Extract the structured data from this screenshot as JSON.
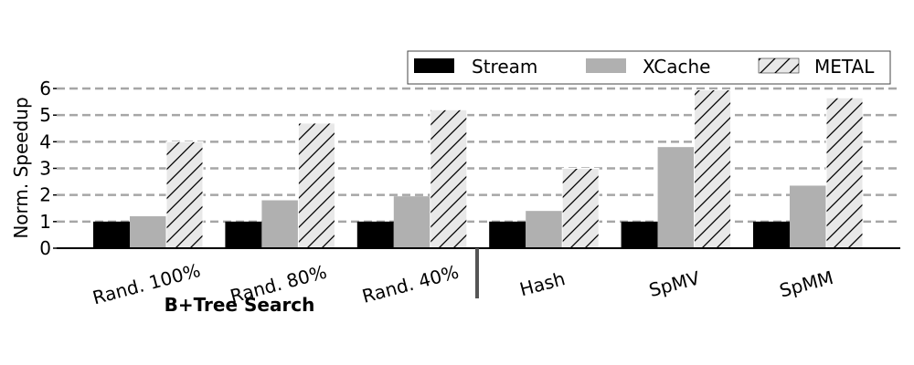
{
  "chart_data": {
    "type": "bar",
    "categories": [
      "Rand. 100%",
      "Rand. 80%",
      "Rand. 40%",
      "Hash",
      "SpMV",
      "SpMM"
    ],
    "series": [
      {
        "name": "Stream",
        "values": [
          1.0,
          1.0,
          1.0,
          1.0,
          1.0,
          1.0
        ]
      },
      {
        "name": "XCache",
        "values": [
          1.2,
          1.8,
          1.95,
          1.4,
          3.8,
          2.35
        ]
      },
      {
        "name": "METAL",
        "values": [
          4.0,
          4.7,
          5.2,
          3.0,
          5.95,
          5.65
        ]
      }
    ],
    "ylabel": "Norm. Speedup",
    "ylim": [
      0,
      6
    ],
    "yticks": [
      "0",
      "1",
      "2",
      "3",
      "4",
      "5",
      "6"
    ],
    "group_label": "B+Tree Search",
    "grid": "horizontal dashed",
    "legend": "top-right",
    "colors": {
      "Stream": "#000000",
      "XCache": "#b0b0b0",
      "METAL": "#e8e8e8"
    },
    "patterns": {
      "METAL": "diagonal-hatch"
    }
  }
}
